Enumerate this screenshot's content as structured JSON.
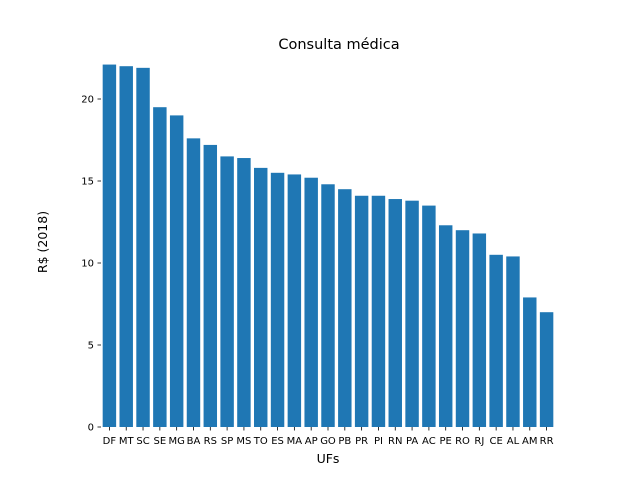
{
  "chart_data": {
    "type": "bar",
    "title": "Consulta médica",
    "xlabel": "UFs",
    "ylabel": "R$ (2018)",
    "ylim": [
      0,
      22.5
    ],
    "yticks": [
      0,
      5,
      10,
      15,
      20
    ],
    "grid": false,
    "color": "#1f77b4",
    "categories": [
      "DF",
      "MT",
      "SC",
      "SE",
      "MG",
      "BA",
      "RS",
      "SP",
      "MS",
      "TO",
      "ES",
      "MA",
      "AP",
      "GO",
      "PB",
      "PR",
      "PI",
      "RN",
      "PA",
      "AC",
      "PE",
      "RO",
      "RJ",
      "CE",
      "AL",
      "AM",
      "RR"
    ],
    "values": [
      22.1,
      22.0,
      21.9,
      19.5,
      19.0,
      17.6,
      17.2,
      16.5,
      16.4,
      15.8,
      15.5,
      15.4,
      15.2,
      14.8,
      14.5,
      14.1,
      14.1,
      13.9,
      13.8,
      13.5,
      12.3,
      12.0,
      11.8,
      10.5,
      10.4,
      7.9,
      7.0
    ]
  }
}
